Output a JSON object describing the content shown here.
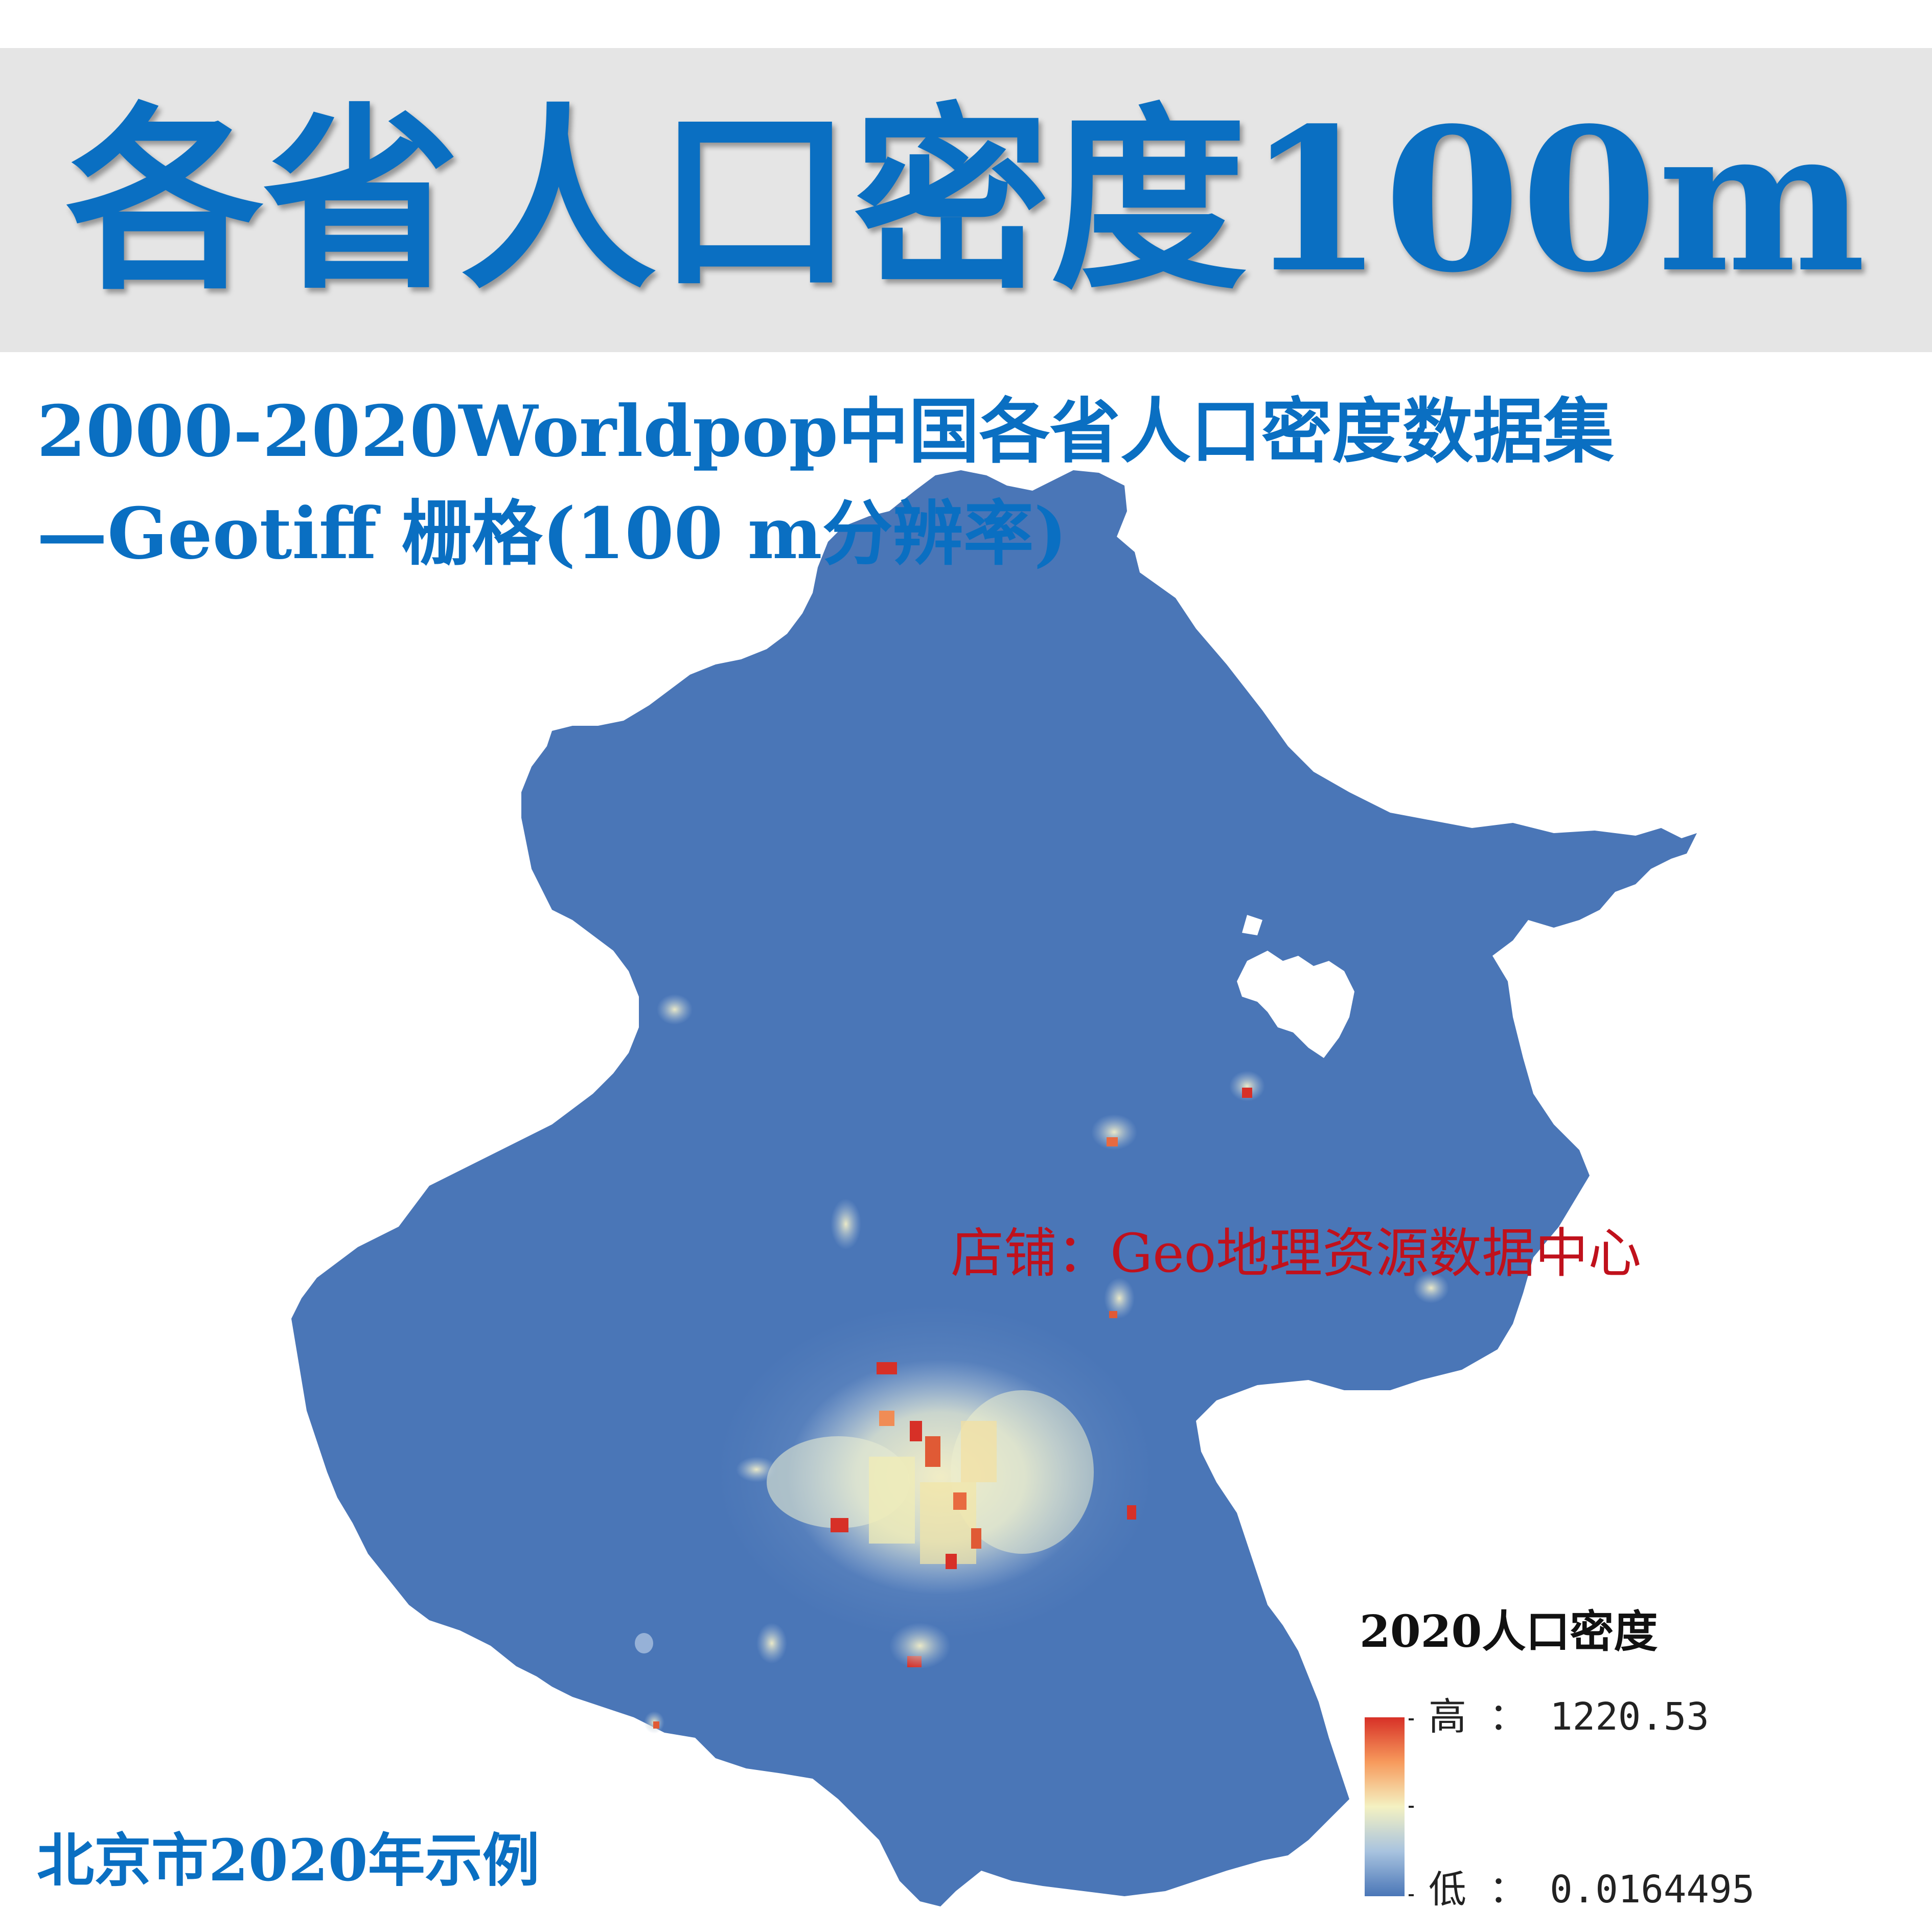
{
  "title": "各省人口密度100m",
  "subtitle": {
    "line1": "2000-2020Worldpop中国各省人口密度数据集",
    "line2": "—Geotiff 栅格(100 m分辨率)"
  },
  "watermark": "店铺：Geo地理资源数据中心",
  "caption": "北京市2020年示例",
  "legend": {
    "title": "2020人口密度",
    "high_label": "高 ： 1220.53",
    "low_label": "低 ： 0.0164495",
    "high_value": 1220.53,
    "low_value": 0.0164495
  },
  "colors": {
    "title_blue": "#0a6fc2",
    "banner_gray": "#e5e5e5",
    "map_low": "#4a76b7",
    "map_mid": "#f4f1c2",
    "map_high": "#d73027",
    "watermark_red": "#c0111c"
  }
}
